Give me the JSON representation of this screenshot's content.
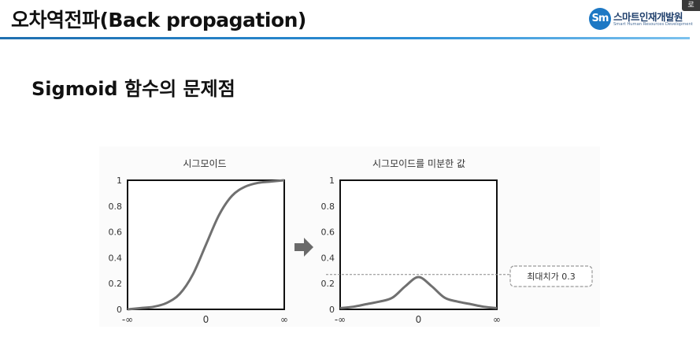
{
  "header": {
    "title": "오차역전파(Back propagation)",
    "accent_color": "#2a8ed6"
  },
  "logo": {
    "mark": "Sm",
    "name": "스마트인재개발원",
    "subtitle": "Smart Human Resources Development",
    "brand_color": "#1d78c4"
  },
  "corner_badge": "로",
  "section": {
    "title": "Sigmoid 함수의 문제점"
  },
  "figure": {
    "arrow_icon": "right-arrow-icon",
    "annotation": "최대치가 0.3"
  },
  "chart_data": [
    {
      "type": "line",
      "title": "시그모이드",
      "x_tick_labels": [
        "-∞",
        "0",
        "∞"
      ],
      "y_ticks": [
        0,
        0.2,
        0.4,
        0.6,
        0.8,
        1
      ],
      "y_tick_labels": [
        "0",
        "0.2",
        "0.4",
        "0.6",
        "0.8",
        "1"
      ],
      "xlim": [
        -6,
        6
      ],
      "ylim": [
        0,
        1
      ],
      "grid": false,
      "series": [
        {
          "x": [
            -6,
            -5,
            -4,
            -3,
            -2,
            -1,
            0,
            1,
            2,
            3,
            4,
            5,
            6
          ],
          "values": [
            0.0,
            0.01,
            0.02,
            0.05,
            0.12,
            0.27,
            0.5,
            0.73,
            0.88,
            0.95,
            0.98,
            0.99,
            1.0
          ]
        }
      ]
    },
    {
      "type": "line",
      "title": "시그모이드를 미분한 값",
      "x_tick_labels": [
        "-∞",
        "0",
        "∞"
      ],
      "y_ticks": [
        0,
        0.2,
        0.4,
        0.6,
        0.8,
        1
      ],
      "y_tick_labels": [
        "0",
        "0.2",
        "0.4",
        "0.6",
        "0.8",
        "1"
      ],
      "xlim": [
        -6,
        6
      ],
      "ylim": [
        0,
        1
      ],
      "grid": false,
      "reference_line": {
        "y": 0.27,
        "style": "dashed"
      },
      "series": [
        {
          "x": [
            -6,
            -5,
            -4,
            -3,
            -2,
            -1,
            0,
            1,
            2,
            3,
            4,
            5,
            6
          ],
          "values": [
            0.01,
            0.02,
            0.04,
            0.06,
            0.09,
            0.18,
            0.25,
            0.18,
            0.09,
            0.06,
            0.04,
            0.02,
            0.01
          ]
        }
      ]
    }
  ]
}
